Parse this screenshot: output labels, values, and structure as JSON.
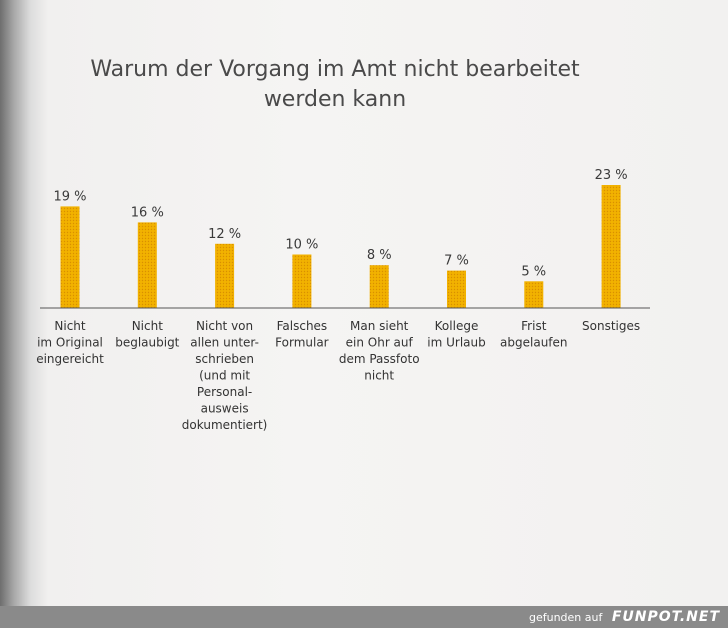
{
  "chart_data": {
    "type": "bar",
    "title_line1": "Warum der Vorgang im Amt nicht bearbeitet",
    "title_line2": "werden kann",
    "categories": [
      "Nicht im Original eingereicht",
      "Nicht beglaubigt",
      "Nicht von allen unter-schrieben (und mit Personal-ausweis dokumentiert)",
      "Falsches Formular",
      "Man sieht ein Ohr auf dem Passfoto nicht",
      "Kollege im Urlaub",
      "Frist abgelaufen",
      "Sonstiges"
    ],
    "category_lines": [
      [
        "Nicht",
        "im Original",
        "eingereicht"
      ],
      [
        "Nicht",
        "beglaubigt"
      ],
      [
        "Nicht von",
        "allen unter-",
        "schrieben",
        "(und mit",
        "Personal-",
        "ausweis",
        "dokumentiert)"
      ],
      [
        "Falsches",
        "Formular"
      ],
      [
        "Man sieht",
        "ein Ohr auf",
        "dem Passfoto",
        "nicht"
      ],
      [
        "Kollege",
        "im Urlaub"
      ],
      [
        "Frist",
        "abgelaufen"
      ],
      [
        "Sonstiges"
      ]
    ],
    "values": [
      19,
      16,
      12,
      10,
      8,
      7,
      5,
      23
    ],
    "value_labels": [
      "19 %",
      "16 %",
      "12 %",
      "10 %",
      "8 %",
      "7 %",
      "5 %",
      "23 %"
    ],
    "unit": "%",
    "ylim": [
      0,
      23
    ],
    "grid": false,
    "legend": "none",
    "bar_color": "#f2b200",
    "bar_dot_color": "#d98f00",
    "baseline_color": "#555555"
  },
  "footer": {
    "prefix": "gefunden auf",
    "brand": "FUNPOT.NET"
  }
}
